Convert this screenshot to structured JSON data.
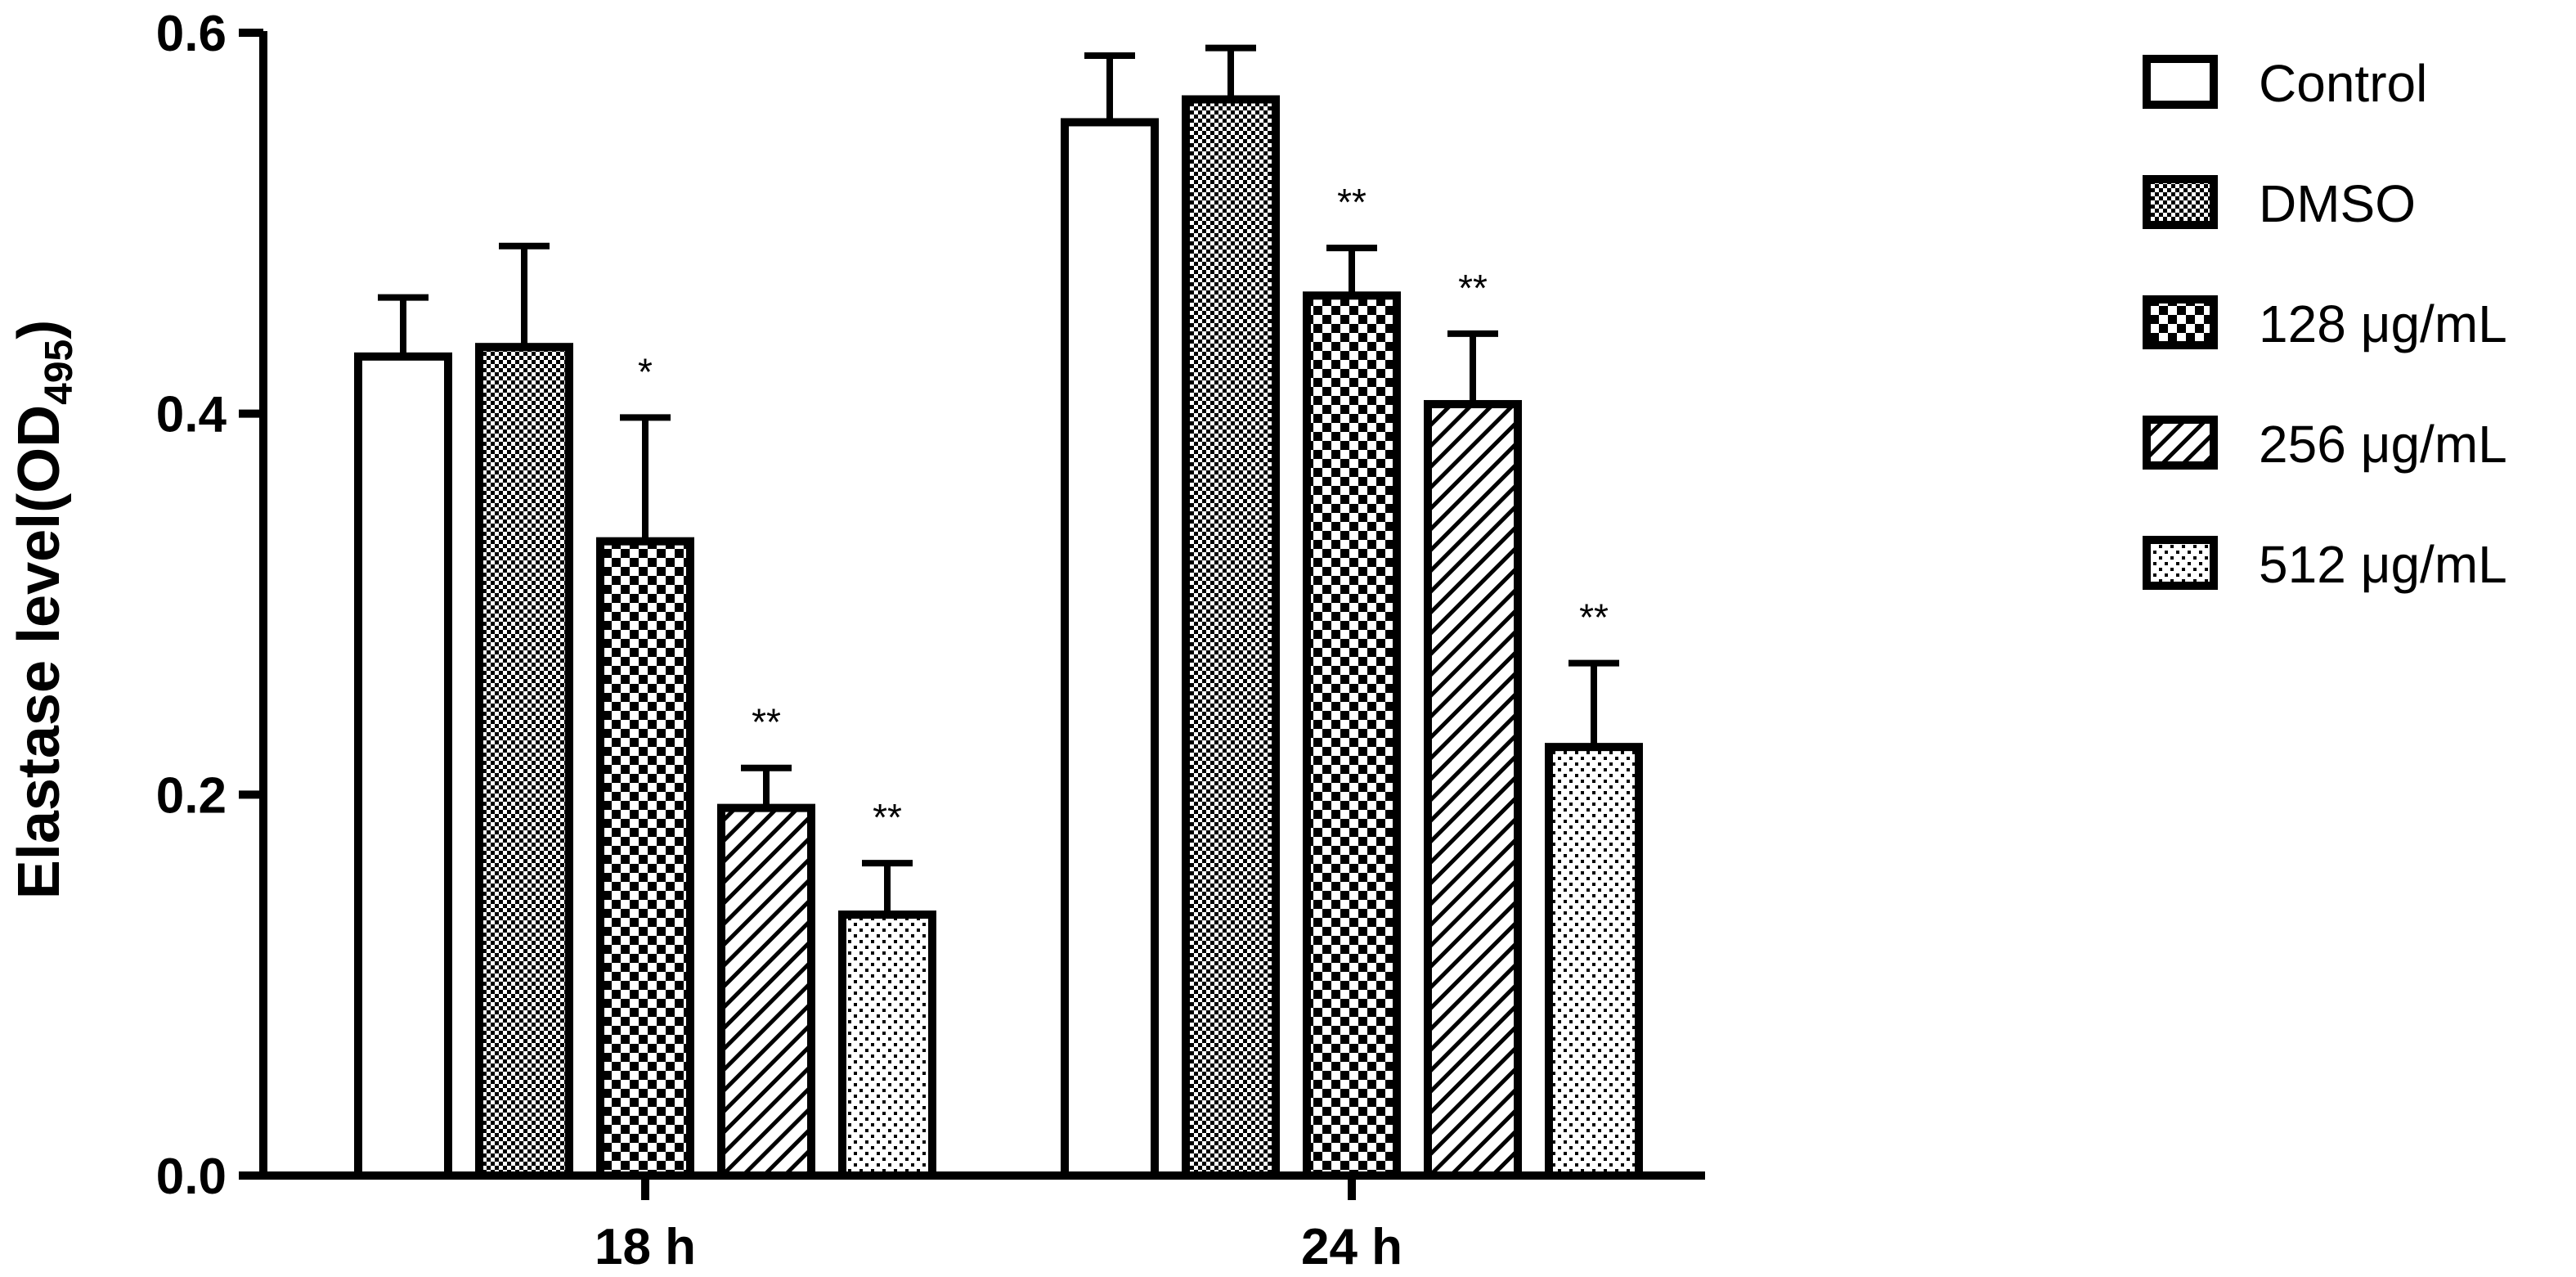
{
  "chart_data": {
    "type": "bar",
    "categories": [
      "18 h",
      "24 h"
    ],
    "ylabel": "Elastase level(OD",
    "ylabel_sub": "495",
    "ylabel_suffix": ")",
    "ylim": [
      0,
      0.6
    ],
    "yticks": [
      "0.0",
      "0.2",
      "0.4",
      "0.6"
    ],
    "legend_position": "top-right",
    "series": [
      {
        "name": "Control",
        "pattern": "none",
        "values": [
          0.43,
          0.553
        ],
        "errors": [
          0.031,
          0.035
        ],
        "sig": [
          "",
          ""
        ]
      },
      {
        "name": "DMSO",
        "pattern": "fine-checker",
        "values": [
          0.435,
          0.565
        ],
        "errors": [
          0.053,
          0.027
        ],
        "sig": [
          "",
          ""
        ]
      },
      {
        "name": "128 μg/mL",
        "pattern": "coarse-checker",
        "values": [
          0.333,
          0.462
        ],
        "errors": [
          0.065,
          0.025
        ],
        "sig": [
          "*",
          "**"
        ]
      },
      {
        "name": "256 μg/mL",
        "pattern": "diagonal",
        "values": [
          0.193,
          0.405
        ],
        "errors": [
          0.021,
          0.037
        ],
        "sig": [
          "**",
          "**"
        ]
      },
      {
        "name": "512 μg/mL",
        "pattern": "dots",
        "values": [
          0.137,
          0.225
        ],
        "errors": [
          0.027,
          0.044
        ],
        "sig": [
          "**",
          "**"
        ]
      }
    ]
  }
}
